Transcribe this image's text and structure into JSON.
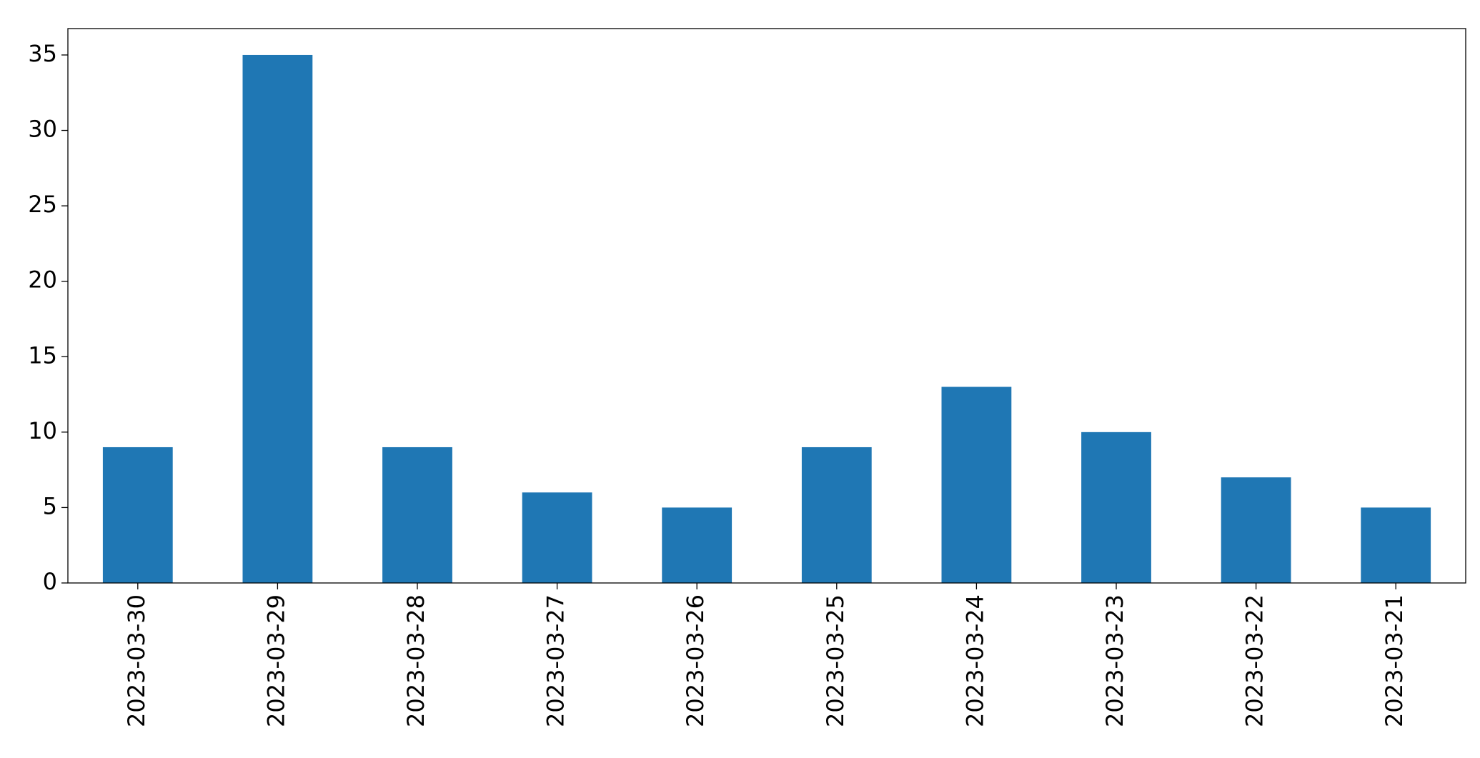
{
  "chart_data": {
    "type": "bar",
    "categories": [
      "2023-03-30",
      "2023-03-29",
      "2023-03-28",
      "2023-03-27",
      "2023-03-26",
      "2023-03-25",
      "2023-03-24",
      "2023-03-23",
      "2023-03-22",
      "2023-03-21"
    ],
    "values": [
      9,
      35,
      9,
      6,
      5,
      9,
      13,
      10,
      7,
      5
    ],
    "color": "#1f77b4",
    "ylim": [
      0,
      36.75
    ],
    "yticks": [
      0,
      5,
      10,
      15,
      20,
      25,
      30,
      35
    ],
    "grid": false
  }
}
